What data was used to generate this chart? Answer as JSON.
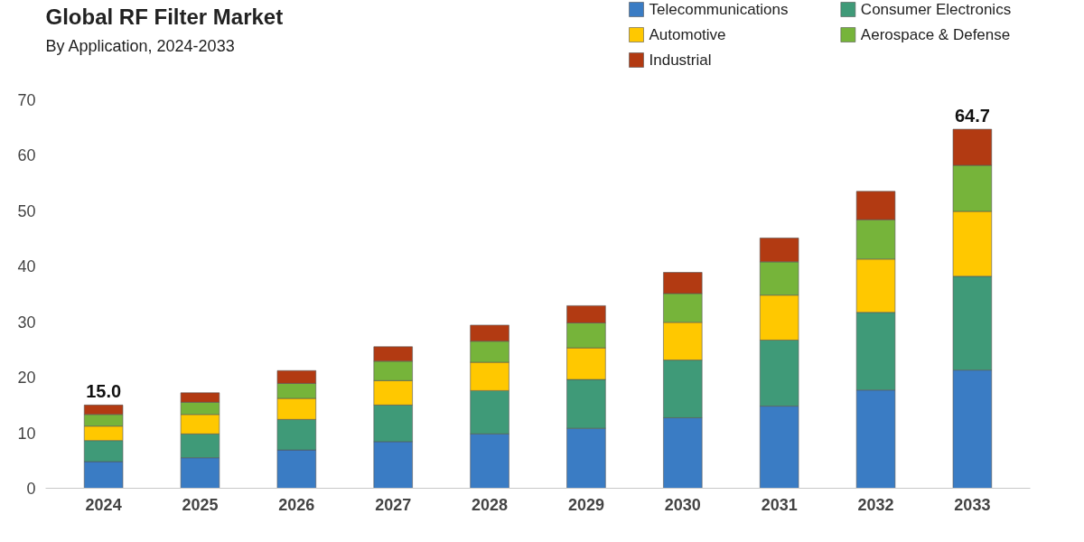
{
  "chart_data": {
    "type": "bar",
    "title": "Global RF Filter Market",
    "subtitle": "By Application, 2024-2033",
    "categories": [
      "2024",
      "2025",
      "2026",
      "2027",
      "2028",
      "2029",
      "2030",
      "2031",
      "2032",
      "2033"
    ],
    "stacked": true,
    "series": [
      {
        "name": "Telecommunications",
        "color": "#3a7cc4",
        "values": [
          4.8,
          5.5,
          6.9,
          8.4,
          9.8,
          10.8,
          12.7,
          14.8,
          17.7,
          21.3
        ]
      },
      {
        "name": "Consumer Electronics",
        "color": "#3f9a78",
        "values": [
          3.8,
          4.3,
          5.5,
          6.6,
          7.8,
          8.8,
          10.4,
          11.9,
          14.0,
          16.9
        ]
      },
      {
        "name": "Automotive",
        "color": "#ffc800",
        "values": [
          2.6,
          3.5,
          3.8,
          4.4,
          5.1,
          5.7,
          6.8,
          8.1,
          9.6,
          11.7
        ]
      },
      {
        "name": "Aerospace & Defense",
        "color": "#76b43a",
        "values": [
          2.1,
          2.2,
          2.7,
          3.5,
          3.8,
          4.5,
          5.2,
          6.0,
          7.1,
          8.3
        ]
      },
      {
        "name": "Industrial",
        "color": "#b23a12",
        "values": [
          1.7,
          1.7,
          2.3,
          2.6,
          2.9,
          3.1,
          3.8,
          4.3,
          5.1,
          6.5
        ]
      }
    ],
    "totals": [
      "15.0",
      null,
      null,
      null,
      null,
      null,
      null,
      null,
      null,
      "64.7"
    ],
    "ylim": [
      0,
      70
    ],
    "yticks": [
      0,
      10,
      20,
      30,
      40,
      50,
      60,
      70
    ],
    "grid": false,
    "legend": "top right"
  }
}
